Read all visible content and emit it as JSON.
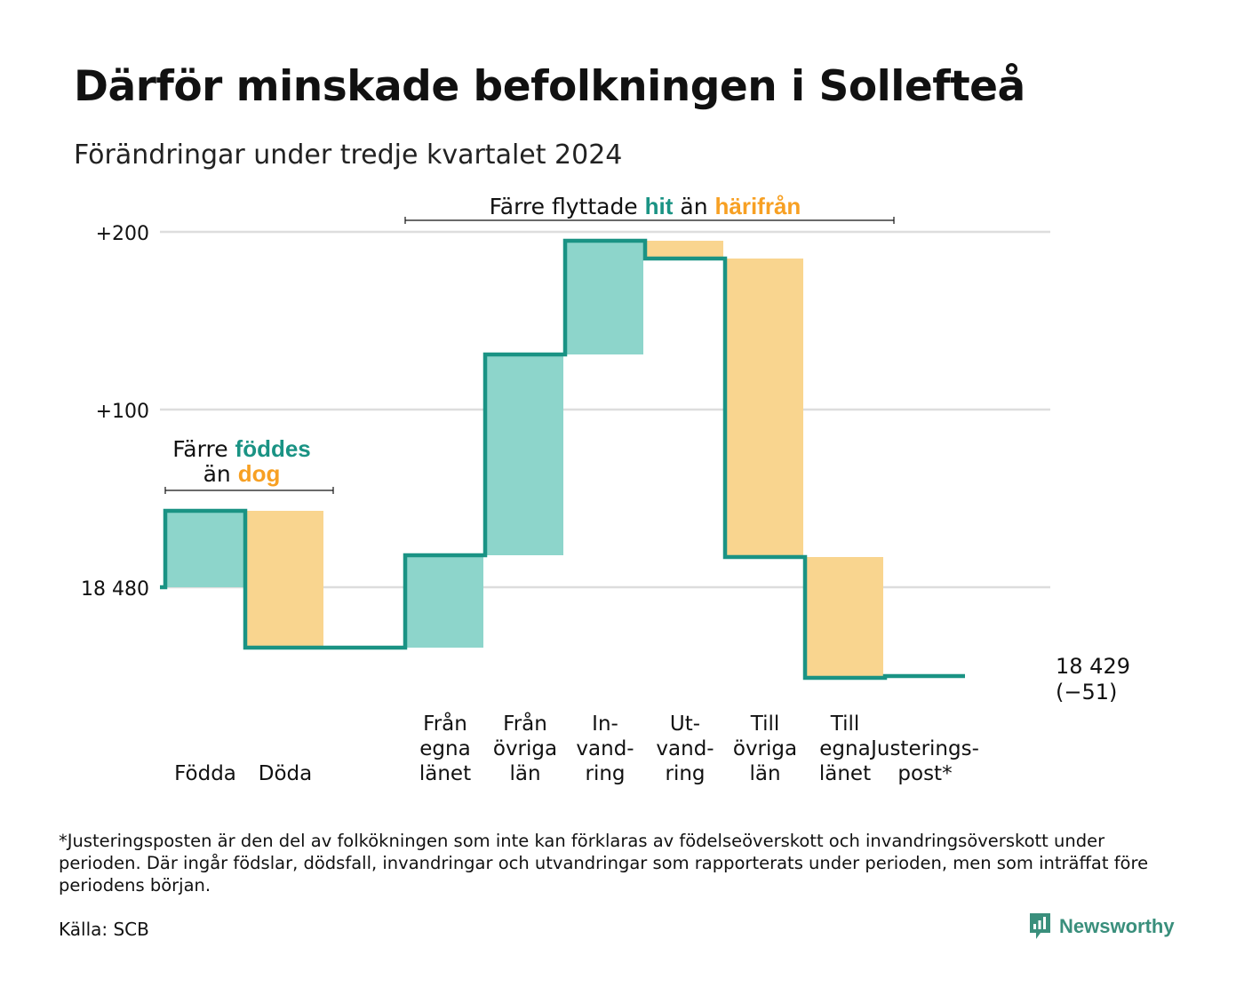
{
  "title": "Därför minskade befolkningen i Sollefteå",
  "subtitle": "Förändringar under tredje kvartalet 2024",
  "colors": {
    "increase": "#8dd5cb",
    "decrease": "#f9d58f",
    "line": "#1a9384",
    "teal_text": "#1a9384",
    "orange_text": "#f7a023",
    "grid": "#dddddd"
  },
  "annotations": {
    "births": {
      "line1_prefix": "Färre",
      "line1_highlight": "föddes",
      "line2_prefix": "än",
      "line2_highlight": "dog"
    },
    "migration": {
      "prefix": "Färre flyttade",
      "highlight1": "hit",
      "middle": "än",
      "highlight2": "härifrån"
    }
  },
  "end_label": {
    "value": "18 429",
    "change": "(−51)"
  },
  "chart_data": {
    "type": "waterfall",
    "title": "Därför minskade befolkningen i Sollefteå",
    "subtitle": "Förändringar under tredje kvartalet 2024",
    "start": 18480,
    "end": 18429,
    "net_change": -51,
    "y_ticks": [
      {
        "value": 0,
        "label": "18 480"
      },
      {
        "value": 100,
        "label": "+100"
      },
      {
        "value": 200,
        "label": "+200"
      }
    ],
    "ylim": [
      -55,
      200
    ],
    "grid": true,
    "categories": [
      {
        "key": "fodda",
        "label": [
          "Födda"
        ],
        "change": 43
      },
      {
        "key": "doda",
        "label": [
          "Döda"
        ],
        "change": -77
      },
      {
        "key": "gap",
        "label": [],
        "change": 0
      },
      {
        "key": "fran_egna_lanet",
        "label": [
          "Från",
          "egna",
          "länet"
        ],
        "change": 52
      },
      {
        "key": "fran_ovriga_lan",
        "label": [
          "Från",
          "övriga",
          "län"
        ],
        "change": 113
      },
      {
        "key": "invandring",
        "label": [
          "In-",
          "vand-",
          "ring"
        ],
        "change": 64
      },
      {
        "key": "utvandring",
        "label": [
          "Ut-",
          "vand-",
          "ring"
        ],
        "change": -10
      },
      {
        "key": "till_ovriga_lan",
        "label": [
          "Till",
          "övriga",
          "län"
        ],
        "change": -168
      },
      {
        "key": "till_egna_lanet",
        "label": [
          "Till",
          "egna",
          "länet"
        ],
        "change": -68
      },
      {
        "key": "justeringspost",
        "label": [
          "Justerings-",
          "post*"
        ],
        "change": 1
      }
    ]
  },
  "footnote": "*Justeringsposten är den del av folkökningen som inte kan förklaras av födelseöverskott och invandringsöverskott under perioden. Där ingår födslar, dödsfall, invandringar och utvandringar som rapporterats under perioden, men som inträffat före periodens början.",
  "source": "Källa: SCB",
  "brand": {
    "name": "Newsworthy",
    "icon": "newsworthy-logo-icon"
  }
}
